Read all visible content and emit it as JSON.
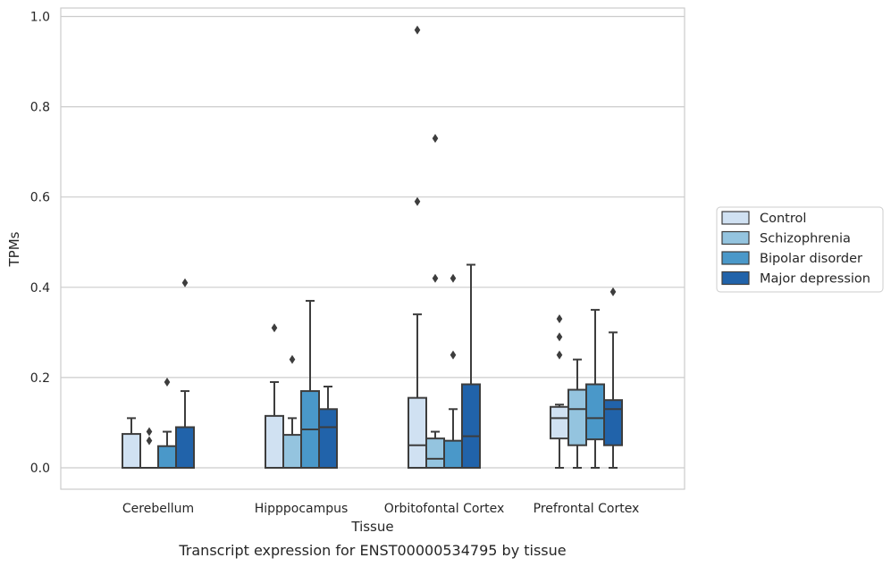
{
  "caption": "Transcript expression for ENST00000534795 by tissue",
  "chart_data": {
    "type": "box",
    "xlabel": "Tissue",
    "ylabel": "TPMs",
    "ylim": [
      -0.045,
      1.02
    ],
    "yticks": [
      "0.0",
      "0.2",
      "0.4",
      "0.6",
      "0.8",
      "1.0"
    ],
    "ytick_values": [
      0.0,
      0.2,
      0.4,
      0.6,
      0.8,
      1.0
    ],
    "grid": "horizontal",
    "legend_position": "right",
    "categories": [
      "Cerebellum",
      "Hipppocampus",
      "Orbitofontal Cortex",
      "Prefrontal Cortex"
    ],
    "series": [
      {
        "name": "Control",
        "color": "#d0e1f2",
        "boxes": [
          {
            "q1": 0.0,
            "median": 0.0,
            "q3": 0.075,
            "whisker_low": 0.0,
            "whisker_high": 0.11,
            "outliers": []
          },
          {
            "q1": 0.0,
            "median": 0.0,
            "q3": 0.115,
            "whisker_low": 0.0,
            "whisker_high": 0.19,
            "outliers": [
              0.31
            ]
          },
          {
            "q1": 0.0,
            "median": 0.05,
            "q3": 0.155,
            "whisker_low": 0.0,
            "whisker_high": 0.34,
            "outliers": [
              0.59,
              0.97
            ]
          },
          {
            "q1": 0.065,
            "median": 0.11,
            "q3": 0.135,
            "whisker_low": 0.0,
            "whisker_high": 0.14,
            "outliers": [
              0.25,
              0.29,
              0.33
            ]
          }
        ]
      },
      {
        "name": "Schizophrenia",
        "color": "#94c4df",
        "boxes": [
          {
            "q1": 0.0,
            "median": 0.0,
            "q3": 0.0,
            "whisker_low": 0.0,
            "whisker_high": 0.0,
            "outliers": [
              0.06,
              0.08
            ]
          },
          {
            "q1": 0.0,
            "median": 0.0,
            "q3": 0.073,
            "whisker_low": 0.0,
            "whisker_high": 0.11,
            "outliers": [
              0.24
            ]
          },
          {
            "q1": 0.0,
            "median": 0.02,
            "q3": 0.065,
            "whisker_low": 0.0,
            "whisker_high": 0.08,
            "outliers": [
              0.42,
              0.73
            ]
          },
          {
            "q1": 0.05,
            "median": 0.13,
            "q3": 0.173,
            "whisker_low": 0.0,
            "whisker_high": 0.24,
            "outliers": []
          }
        ]
      },
      {
        "name": "Bipolar disorder",
        "color": "#4a98c9",
        "boxes": [
          {
            "q1": 0.0,
            "median": 0.0,
            "q3": 0.048,
            "whisker_low": 0.0,
            "whisker_high": 0.08,
            "outliers": [
              0.19
            ]
          },
          {
            "q1": 0.0,
            "median": 0.085,
            "q3": 0.17,
            "whisker_low": 0.0,
            "whisker_high": 0.37,
            "outliers": []
          },
          {
            "q1": 0.0,
            "median": 0.0,
            "q3": 0.06,
            "whisker_low": 0.0,
            "whisker_high": 0.13,
            "outliers": [
              0.25,
              0.42
            ]
          },
          {
            "q1": 0.063,
            "median": 0.11,
            "q3": 0.185,
            "whisker_low": 0.0,
            "whisker_high": 0.35,
            "outliers": []
          }
        ]
      },
      {
        "name": "Major depression",
        "color": "#2163aa",
        "boxes": [
          {
            "q1": 0.0,
            "median": 0.0,
            "q3": 0.09,
            "whisker_low": 0.0,
            "whisker_high": 0.17,
            "outliers": [
              0.41
            ]
          },
          {
            "q1": 0.0,
            "median": 0.09,
            "q3": 0.13,
            "whisker_low": 0.0,
            "whisker_high": 0.18,
            "outliers": []
          },
          {
            "q1": 0.0,
            "median": 0.07,
            "q3": 0.185,
            "whisker_low": 0.0,
            "whisker_high": 0.45,
            "outliers": []
          },
          {
            "q1": 0.05,
            "median": 0.13,
            "q3": 0.15,
            "whisker_low": 0.0,
            "whisker_high": 0.3,
            "outliers": [
              0.39
            ]
          }
        ]
      }
    ]
  }
}
